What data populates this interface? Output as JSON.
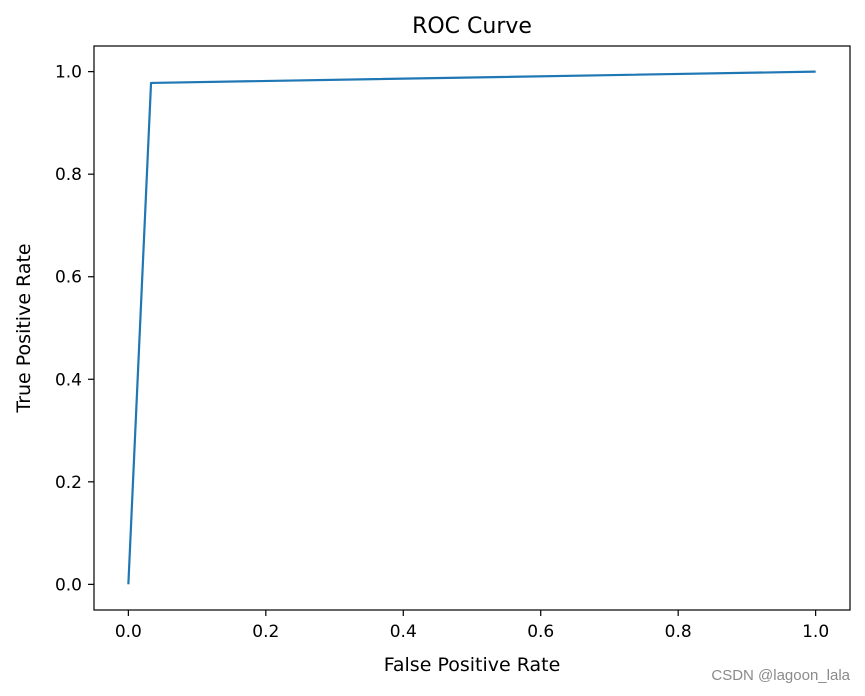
{
  "chart_data": {
    "type": "line",
    "title": "ROC Curve",
    "xlabel": "False Positive Rate",
    "ylabel": "True Positive Rate",
    "xlim": [
      -0.05,
      1.05
    ],
    "ylim": [
      -0.05,
      1.05
    ],
    "x_ticks": [
      "0.0",
      "0.2",
      "0.4",
      "0.6",
      "0.8",
      "1.0"
    ],
    "y_ticks": [
      "0.0",
      "0.2",
      "0.4",
      "0.6",
      "0.8",
      "1.0"
    ],
    "grid": false,
    "series": [
      {
        "x": [
          0.0,
          0.033,
          1.0
        ],
        "y": [
          0.0,
          0.978,
          1.0
        ],
        "color": "#1f77b4"
      }
    ]
  },
  "watermark": "CSDN @lagoon_lala"
}
